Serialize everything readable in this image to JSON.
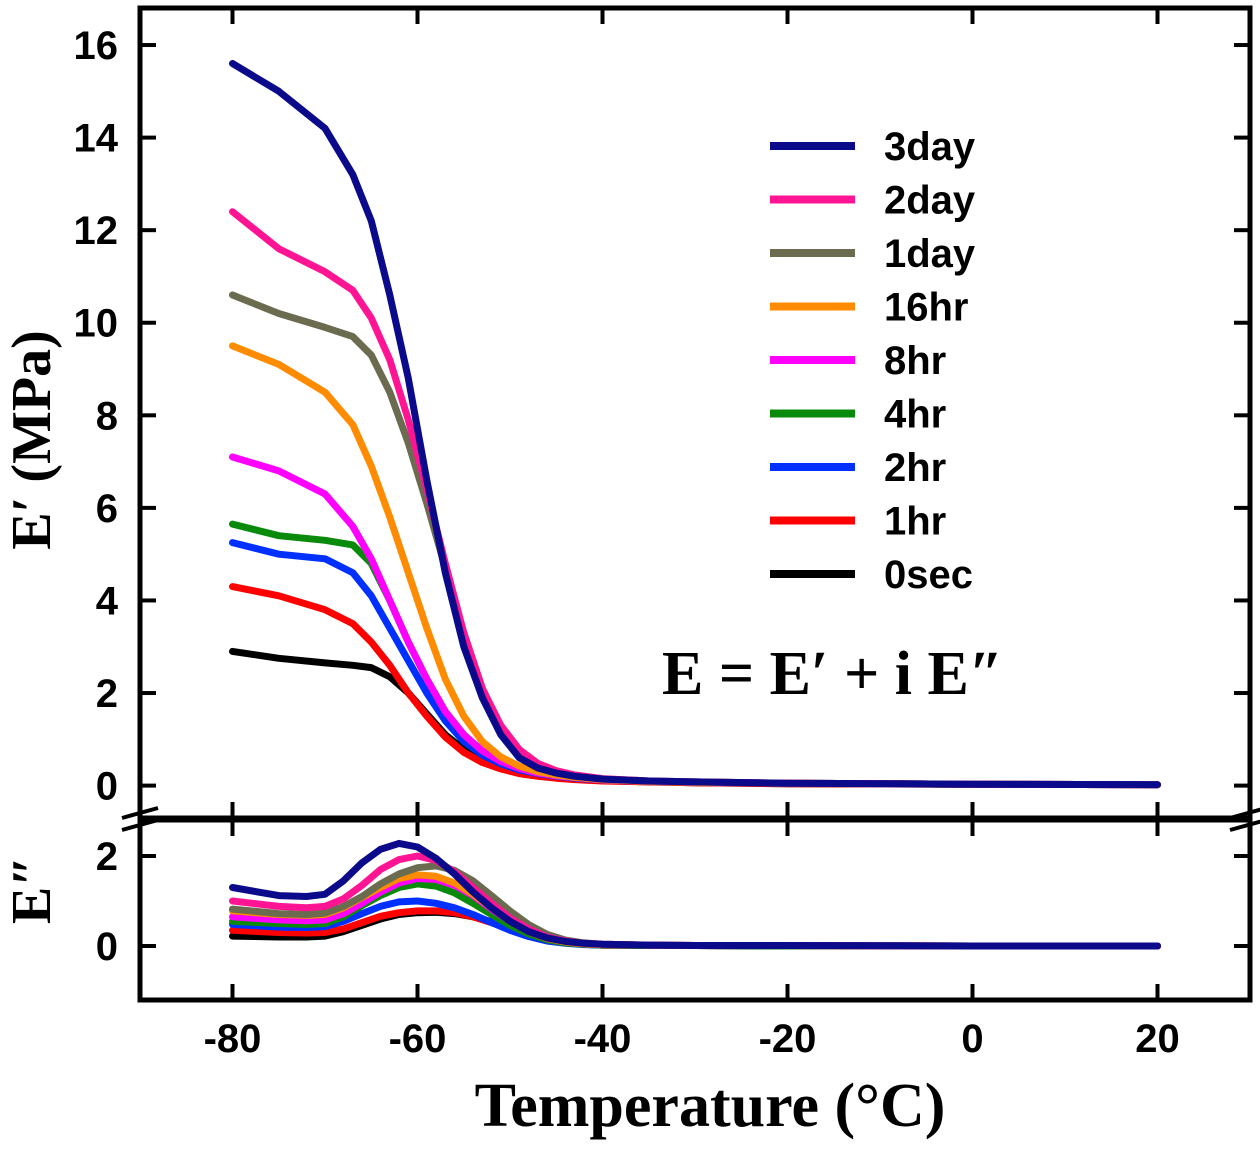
{
  "chart_data": {
    "type": "line",
    "xlabel": "Temperature (°C)",
    "xlim": [
      -90,
      30
    ],
    "xticks": [
      "-80",
      "-60",
      "-40",
      "-20",
      "0",
      "20"
    ],
    "annotation": "E = E′ + i E″",
    "legend_position": "top-right",
    "panels": [
      {
        "id": "storage",
        "ylabel": "E′ (MPa)",
        "ylim": [
          -0.7,
          16.8
        ],
        "yticks": [
          "0",
          "2",
          "4",
          "6",
          "8",
          "10",
          "12",
          "14",
          "16"
        ],
        "x": [
          -80,
          -75,
          -70,
          -67,
          -65,
          -63,
          -61,
          -59,
          -57,
          -55,
          -53,
          -51,
          -49,
          -47,
          -45,
          -43,
          -40,
          -35,
          -30,
          -20,
          0,
          20
        ],
        "series": [
          {
            "name": "3day",
            "color": "#0a0a8a",
            "values": [
              15.6,
              15.0,
              14.2,
              13.2,
              12.2,
              10.6,
              8.8,
              6.6,
              4.6,
              3.0,
              1.9,
              1.1,
              0.6,
              0.38,
              0.27,
              0.2,
              0.14,
              0.1,
              0.08,
              0.05,
              0.03,
              0.02
            ]
          },
          {
            "name": "2day",
            "color": "#ff1493",
            "values": [
              12.4,
              11.6,
              11.1,
              10.7,
              10.1,
              9.2,
              7.9,
              6.4,
              4.8,
              3.3,
              2.1,
              1.3,
              0.78,
              0.48,
              0.32,
              0.23,
              0.15,
              0.1,
              0.08,
              0.05,
              0.03,
              0.02
            ]
          },
          {
            "name": "1day",
            "color": "#6b6b50",
            "values": [
              10.6,
              10.2,
              9.9,
              9.7,
              9.3,
              8.5,
              7.4,
              6.1,
              4.7,
              3.3,
              2.1,
              1.25,
              0.75,
              0.47,
              0.32,
              0.23,
              0.15,
              0.1,
              0.08,
              0.05,
              0.03,
              0.02
            ]
          },
          {
            "name": "16hr",
            "color": "#ff8c00",
            "values": [
              9.5,
              9.1,
              8.5,
              7.8,
              6.9,
              5.8,
              4.6,
              3.4,
              2.3,
              1.5,
              0.95,
              0.62,
              0.42,
              0.3,
              0.23,
              0.18,
              0.13,
              0.09,
              0.07,
              0.05,
              0.03,
              0.02
            ]
          },
          {
            "name": "8hr",
            "color": "#ff00ff",
            "values": [
              7.1,
              6.8,
              6.3,
              5.6,
              4.9,
              4.0,
              3.1,
              2.3,
              1.6,
              1.1,
              0.75,
              0.52,
              0.37,
              0.27,
              0.21,
              0.17,
              0.12,
              0.09,
              0.07,
              0.05,
              0.03,
              0.02
            ]
          },
          {
            "name": "4hr",
            "color": "#0a8a0a",
            "values": [
              5.65,
              5.4,
              5.3,
              5.2,
              4.8,
              4.0,
              3.1,
              2.3,
              1.6,
              1.1,
              0.75,
              0.52,
              0.37,
              0.27,
              0.21,
              0.17,
              0.12,
              0.09,
              0.07,
              0.05,
              0.03,
              0.02
            ]
          },
          {
            "name": "2hr",
            "color": "#0030ff",
            "values": [
              5.25,
              5.0,
              4.9,
              4.6,
              4.1,
              3.4,
              2.7,
              2.0,
              1.4,
              0.95,
              0.66,
              0.47,
              0.34,
              0.26,
              0.2,
              0.16,
              0.12,
              0.09,
              0.07,
              0.05,
              0.03,
              0.02
            ]
          },
          {
            "name": "1hr",
            "color": "#ff0000",
            "values": [
              4.3,
              4.1,
              3.8,
              3.5,
              3.1,
              2.6,
              2.0,
              1.5,
              1.05,
              0.72,
              0.5,
              0.36,
              0.26,
              0.2,
              0.16,
              0.13,
              0.1,
              0.08,
              0.06,
              0.04,
              0.03,
              0.02
            ]
          },
          {
            "name": "0sec",
            "color": "#000000",
            "values": [
              2.9,
              2.75,
              2.65,
              2.6,
              2.55,
              2.35,
              2.0,
              1.55,
              1.1,
              0.78,
              0.55,
              0.4,
              0.3,
              0.23,
              0.18,
              0.15,
              0.11,
              0.08,
              0.06,
              0.04,
              0.03,
              0.02
            ]
          }
        ]
      },
      {
        "id": "loss",
        "ylabel": "E″",
        "ylim": [
          -1.2,
          2.8
        ],
        "yticks": [
          "0",
          "2"
        ],
        "x": [
          -80,
          -75,
          -72,
          -70,
          -68,
          -66,
          -64,
          -62,
          -60,
          -58,
          -56,
          -54,
          -52,
          -50,
          -48,
          -46,
          -44,
          -42,
          -40,
          -35,
          -30,
          -20,
          0,
          20
        ],
        "series": [
          {
            "name": "3day",
            "color": "#0a0a8a",
            "values": [
              1.3,
              1.12,
              1.1,
              1.15,
              1.45,
              1.85,
              2.15,
              2.28,
              2.2,
              1.95,
              1.6,
              1.2,
              0.85,
              0.55,
              0.32,
              0.18,
              0.1,
              0.06,
              0.04,
              0.02,
              0.01,
              0.01,
              0.0,
              0.0
            ]
          },
          {
            "name": "2day",
            "color": "#ff1493",
            "values": [
              1.0,
              0.88,
              0.85,
              0.88,
              1.05,
              1.35,
              1.7,
              1.92,
              2.0,
              1.9,
              1.65,
              1.3,
              0.95,
              0.62,
              0.38,
              0.2,
              0.11,
              0.06,
              0.04,
              0.02,
              0.01,
              0.01,
              0.0,
              0.0
            ]
          },
          {
            "name": "1day",
            "color": "#6b6b50",
            "values": [
              0.82,
              0.72,
              0.7,
              0.73,
              0.88,
              1.1,
              1.38,
              1.6,
              1.74,
              1.78,
              1.68,
              1.45,
              1.12,
              0.78,
              0.48,
              0.26,
              0.13,
              0.07,
              0.04,
              0.02,
              0.01,
              0.01,
              0.0,
              0.0
            ]
          },
          {
            "name": "16hr",
            "color": "#ff8c00",
            "values": [
              0.78,
              0.7,
              0.68,
              0.7,
              0.85,
              1.08,
              1.3,
              1.5,
              1.58,
              1.55,
              1.4,
              1.15,
              0.85,
              0.55,
              0.32,
              0.17,
              0.09,
              0.05,
              0.03,
              0.02,
              0.01,
              0.01,
              0.0,
              0.0
            ]
          },
          {
            "name": "8hr",
            "color": "#ff00ff",
            "values": [
              0.65,
              0.58,
              0.56,
              0.58,
              0.72,
              0.95,
              1.2,
              1.4,
              1.5,
              1.48,
              1.35,
              1.12,
              0.82,
              0.55,
              0.32,
              0.17,
              0.09,
              0.05,
              0.03,
              0.02,
              0.01,
              0.01,
              0.0,
              0.0
            ]
          },
          {
            "name": "4hr",
            "color": "#0a8a0a",
            "values": [
              0.55,
              0.5,
              0.48,
              0.5,
              0.65,
              0.9,
              1.12,
              1.3,
              1.38,
              1.33,
              1.18,
              0.95,
              0.7,
              0.46,
              0.27,
              0.14,
              0.07,
              0.04,
              0.02,
              0.01,
              0.01,
              0.0,
              0.0,
              0.0
            ]
          },
          {
            "name": "2hr",
            "color": "#0030ff",
            "values": [
              0.48,
              0.42,
              0.41,
              0.43,
              0.55,
              0.72,
              0.88,
              0.98,
              1.0,
              0.95,
              0.85,
              0.7,
              0.52,
              0.35,
              0.21,
              0.11,
              0.06,
              0.03,
              0.02,
              0.01,
              0.01,
              0.0,
              0.0,
              0.0
            ]
          },
          {
            "name": "1hr",
            "color": "#ff0000",
            "values": [
              0.35,
              0.3,
              0.29,
              0.3,
              0.38,
              0.52,
              0.66,
              0.74,
              0.78,
              0.78,
              0.74,
              0.65,
              0.52,
              0.38,
              0.24,
              0.13,
              0.07,
              0.04,
              0.02,
              0.01,
              0.01,
              0.0,
              0.0,
              0.0
            ]
          },
          {
            "name": "0sec",
            "color": "#000000",
            "values": [
              0.22,
              0.2,
              0.2,
              0.22,
              0.32,
              0.46,
              0.6,
              0.7,
              0.74,
              0.75,
              0.72,
              0.65,
              0.54,
              0.4,
              0.26,
              0.15,
              0.08,
              0.04,
              0.02,
              0.01,
              0.01,
              0.0,
              0.0,
              0.0
            ]
          }
        ]
      }
    ]
  }
}
